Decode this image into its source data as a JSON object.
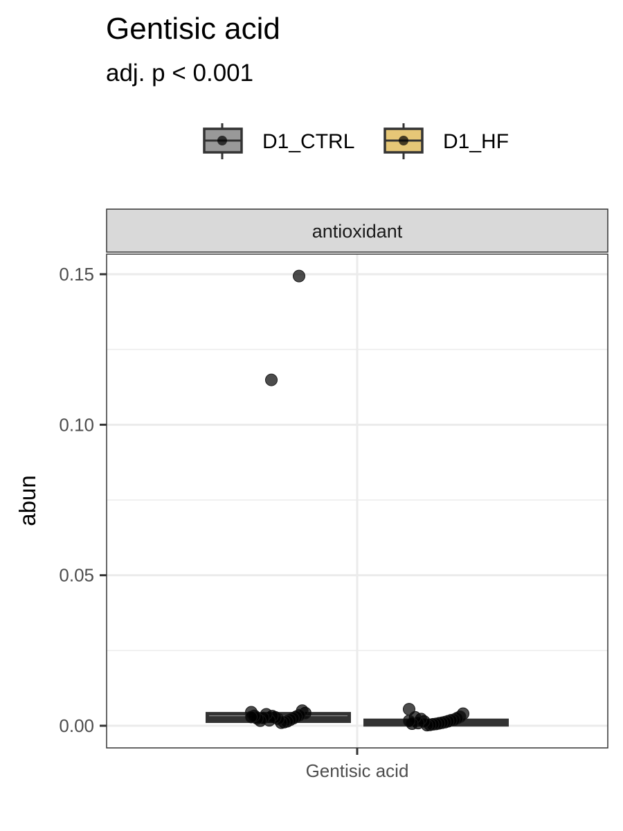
{
  "chart_data": {
    "type": "box",
    "title": "Gentisic acid",
    "subtitle": "adj. p < 0.001",
    "facet_label": "antioxidant",
    "xlabel": "",
    "ylabel": "abun",
    "categories": [
      "Gentisic acid"
    ],
    "ylim": [
      -0.006,
      0.157
    ],
    "yticks": [
      0.0,
      0.05,
      0.1,
      0.15
    ],
    "ytick_labels": [
      "0.00",
      "0.05",
      "0.10",
      "0.15"
    ],
    "grid": true,
    "legend_position": "top",
    "series": [
      {
        "name": "D1_CTRL",
        "color": "#999999",
        "box": {
          "q1": 0.0015,
          "median": 0.0025,
          "q3": 0.004
        },
        "outliers": [
          0.1494,
          0.1149
        ],
        "points": [
          0.0045,
          0.0042,
          0.005,
          0.0035,
          0.003,
          0.0025,
          0.002,
          0.0015,
          0.0012,
          0.001,
          0.0022,
          0.0028,
          0.0032,
          0.0018,
          0.0038,
          0.0026,
          0.0017,
          0.0024,
          0.0033,
          0.0029
        ]
      },
      {
        "name": "D1_HF",
        "color": "#E6C777",
        "box": {
          "q1": 0.0003,
          "median": 0.001,
          "q3": 0.0018
        },
        "outliers": [],
        "points": [
          0.0055,
          0.004,
          0.003,
          0.0025,
          0.002,
          0.0018,
          0.0015,
          0.0012,
          0.001,
          0.0008,
          0.0006,
          0.0005,
          0.0003,
          0.0002,
          0.0014,
          0.0022,
          0.0009,
          0.0028,
          0.0007,
          0.0016
        ]
      }
    ]
  }
}
